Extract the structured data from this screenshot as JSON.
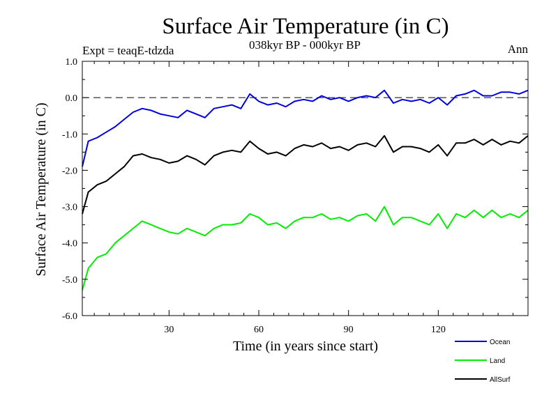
{
  "chart_data": {
    "type": "line",
    "title": "Surface Air Temperature (in C)",
    "left_label": "Expt = teaqE-tdzda",
    "subtitle": "038kyr BP - 000kyr BP",
    "right_label": "Ann",
    "xlabel": "Time (in years since start)",
    "ylabel": "Surface Air Temperature (in C)",
    "xlim": [
      1,
      150
    ],
    "ylim": [
      -6.0,
      1.0
    ],
    "xticks": [
      30,
      60,
      90,
      120
    ],
    "xtick_labels": [
      "30",
      "60",
      "90",
      "120"
    ],
    "yticks": [
      1.0,
      0.0,
      -1.0,
      -2.0,
      -3.0,
      -4.0,
      -5.0,
      -6.0
    ],
    "ytick_labels": [
      "1.0",
      "0.0",
      "-1.0",
      "-2.0",
      "-3.0",
      "-4.0",
      "-5.0",
      "-6.0"
    ],
    "reference_line": 0.0,
    "legend_position": "bottom-right",
    "series": [
      {
        "name": "Ocean",
        "color": "#0000dd",
        "x": [
          1,
          3,
          6,
          9,
          12,
          15,
          18,
          21,
          24,
          27,
          30,
          33,
          36,
          39,
          42,
          45,
          48,
          51,
          54,
          57,
          60,
          63,
          66,
          69,
          72,
          75,
          78,
          81,
          84,
          87,
          90,
          93,
          96,
          99,
          102,
          105,
          108,
          111,
          114,
          117,
          120,
          123,
          126,
          129,
          132,
          135,
          138,
          141,
          144,
          147,
          150
        ],
        "values": [
          -1.9,
          -1.2,
          -1.1,
          -0.95,
          -0.8,
          -0.6,
          -0.4,
          -0.3,
          -0.35,
          -0.45,
          -0.5,
          -0.55,
          -0.35,
          -0.45,
          -0.55,
          -0.3,
          -0.25,
          -0.2,
          -0.3,
          0.1,
          -0.1,
          -0.2,
          -0.15,
          -0.25,
          -0.1,
          -0.05,
          -0.1,
          0.05,
          -0.05,
          0.0,
          -0.1,
          0.0,
          0.05,
          0.0,
          0.2,
          -0.15,
          -0.05,
          -0.1,
          -0.05,
          -0.15,
          0.0,
          -0.2,
          0.05,
          0.1,
          0.2,
          0.05,
          0.05,
          0.15,
          0.15,
          0.1,
          0.2
        ]
      },
      {
        "name": "Land",
        "color": "#00ee00",
        "x": [
          1,
          3,
          6,
          9,
          12,
          15,
          18,
          21,
          24,
          27,
          30,
          33,
          36,
          39,
          42,
          45,
          48,
          51,
          54,
          57,
          60,
          63,
          66,
          69,
          72,
          75,
          78,
          81,
          84,
          87,
          90,
          93,
          96,
          99,
          102,
          105,
          108,
          111,
          114,
          117,
          120,
          123,
          126,
          129,
          132,
          135,
          138,
          141,
          144,
          147,
          150
        ],
        "values": [
          -5.3,
          -4.7,
          -4.4,
          -4.3,
          -4.0,
          -3.8,
          -3.6,
          -3.4,
          -3.5,
          -3.6,
          -3.7,
          -3.75,
          -3.6,
          -3.7,
          -3.8,
          -3.6,
          -3.5,
          -3.5,
          -3.45,
          -3.2,
          -3.3,
          -3.5,
          -3.45,
          -3.6,
          -3.4,
          -3.3,
          -3.3,
          -3.2,
          -3.35,
          -3.3,
          -3.4,
          -3.25,
          -3.2,
          -3.4,
          -3.0,
          -3.5,
          -3.3,
          -3.3,
          -3.4,
          -3.5,
          -3.2,
          -3.6,
          -3.2,
          -3.3,
          -3.1,
          -3.3,
          -3.1,
          -3.3,
          -3.2,
          -3.3,
          -3.1
        ]
      },
      {
        "name": "AllSurf",
        "color": "#000000",
        "x": [
          1,
          3,
          6,
          9,
          12,
          15,
          18,
          21,
          24,
          27,
          30,
          33,
          36,
          39,
          42,
          45,
          48,
          51,
          54,
          57,
          60,
          63,
          66,
          69,
          72,
          75,
          78,
          81,
          84,
          87,
          90,
          93,
          96,
          99,
          102,
          105,
          108,
          111,
          114,
          117,
          120,
          123,
          126,
          129,
          132,
          135,
          138,
          141,
          144,
          147,
          150
        ],
        "values": [
          -3.2,
          -2.6,
          -2.4,
          -2.3,
          -2.1,
          -1.9,
          -1.6,
          -1.55,
          -1.65,
          -1.7,
          -1.8,
          -1.75,
          -1.6,
          -1.7,
          -1.85,
          -1.6,
          -1.5,
          -1.45,
          -1.5,
          -1.2,
          -1.4,
          -1.55,
          -1.5,
          -1.6,
          -1.4,
          -1.3,
          -1.35,
          -1.25,
          -1.4,
          -1.35,
          -1.45,
          -1.3,
          -1.25,
          -1.35,
          -1.05,
          -1.5,
          -1.35,
          -1.35,
          -1.4,
          -1.5,
          -1.3,
          -1.6,
          -1.25,
          -1.25,
          -1.15,
          -1.3,
          -1.15,
          -1.3,
          -1.2,
          -1.25,
          -1.05
        ]
      }
    ]
  }
}
